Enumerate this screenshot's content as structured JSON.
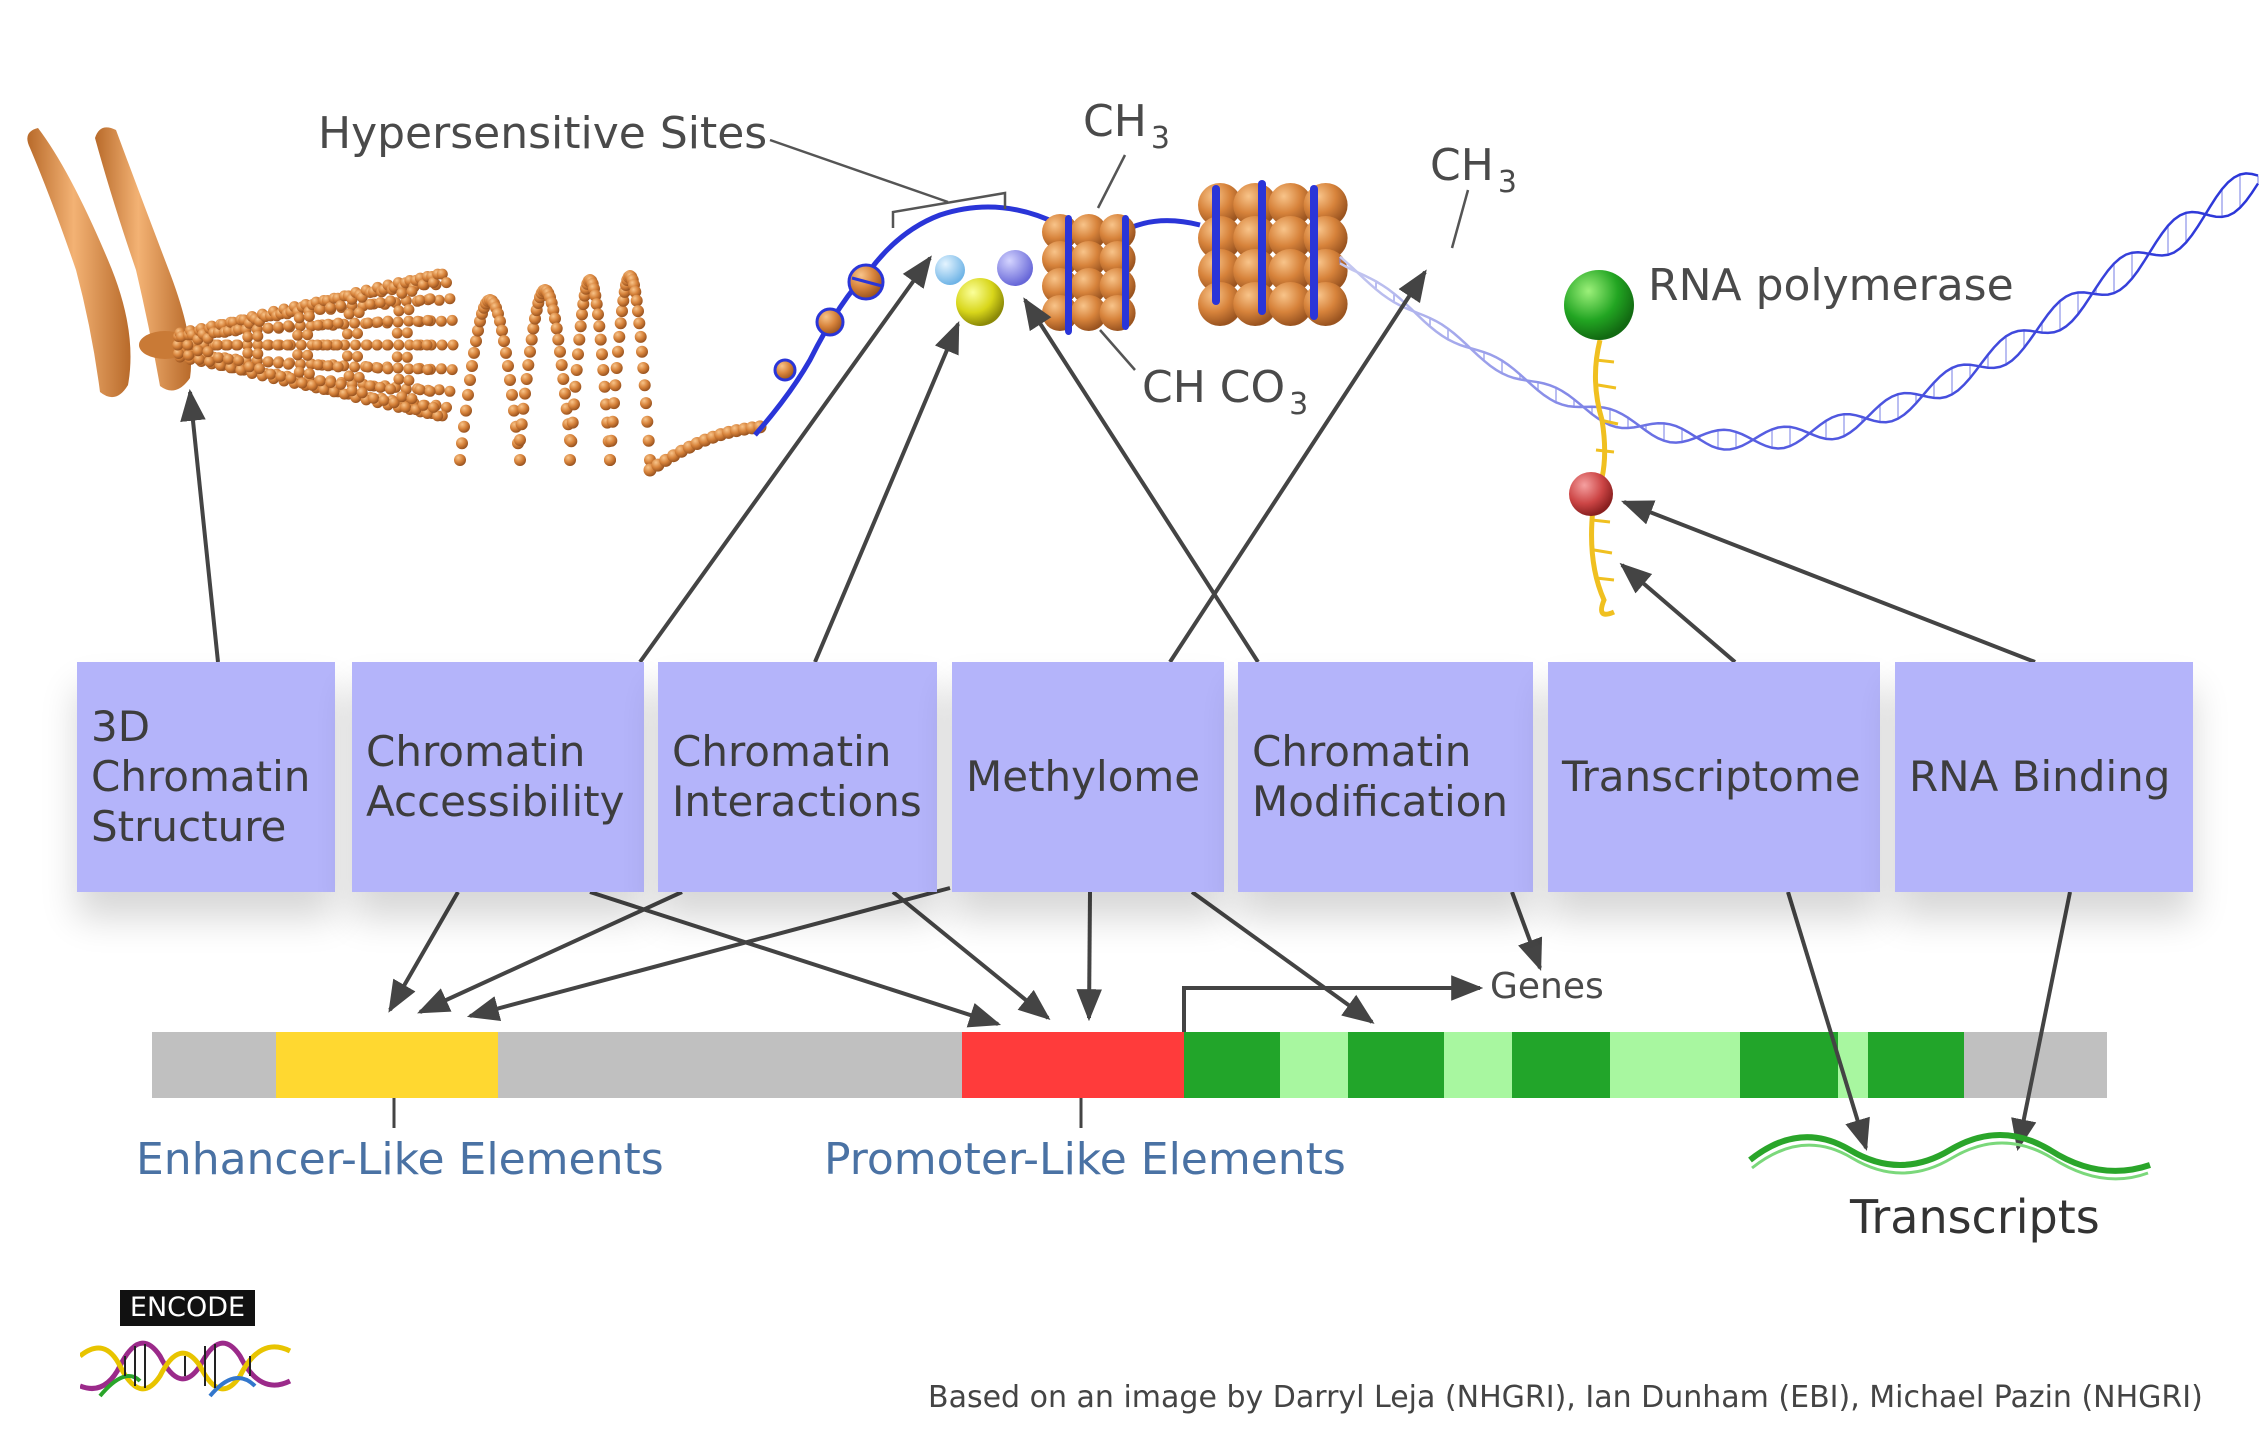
{
  "labels": {
    "hypersensitive_sites": "Hypersensitive Sites",
    "ch3_a": "CH",
    "ch3_a_sub": "3",
    "ch3_b": "CH",
    "ch3_b_sub": "3",
    "chco3": "CH CO",
    "chco3_sub": "3",
    "rna_polymerase": "RNA polymerase",
    "genes": "Genes",
    "enhancer": "Enhancer-Like Elements",
    "promoter": "Promoter-Like Elements",
    "transcripts": "Transcripts"
  },
  "assays": [
    {
      "label": "3D\nChromatin\nStructure"
    },
    {
      "label": "Chromatin\nAccessibility"
    },
    {
      "label": "Chromatin\nInteractions"
    },
    {
      "label": "Methylome"
    },
    {
      "label": "Chromatin\nModification"
    },
    {
      "label": "Transcriptome"
    },
    {
      "label": "RNA Binding"
    }
  ],
  "logo": {
    "text": "ENCODE"
  },
  "credit": "Based on an image by Darryl Leja (NHGRI), Ian Dunham (EBI), Michael Pazin (NHGRI)",
  "colors": {
    "box": "#b4b4fa",
    "enhancer": "#ffd830",
    "promoter": "#ff3b3b",
    "exon_dark": "#22a52a",
    "exon_light": "#a8f7a0",
    "bar": "#c0c0c0",
    "chromatin": "#d9863e",
    "dna": "#2a35d8",
    "label_blue": "#4a72a4"
  }
}
